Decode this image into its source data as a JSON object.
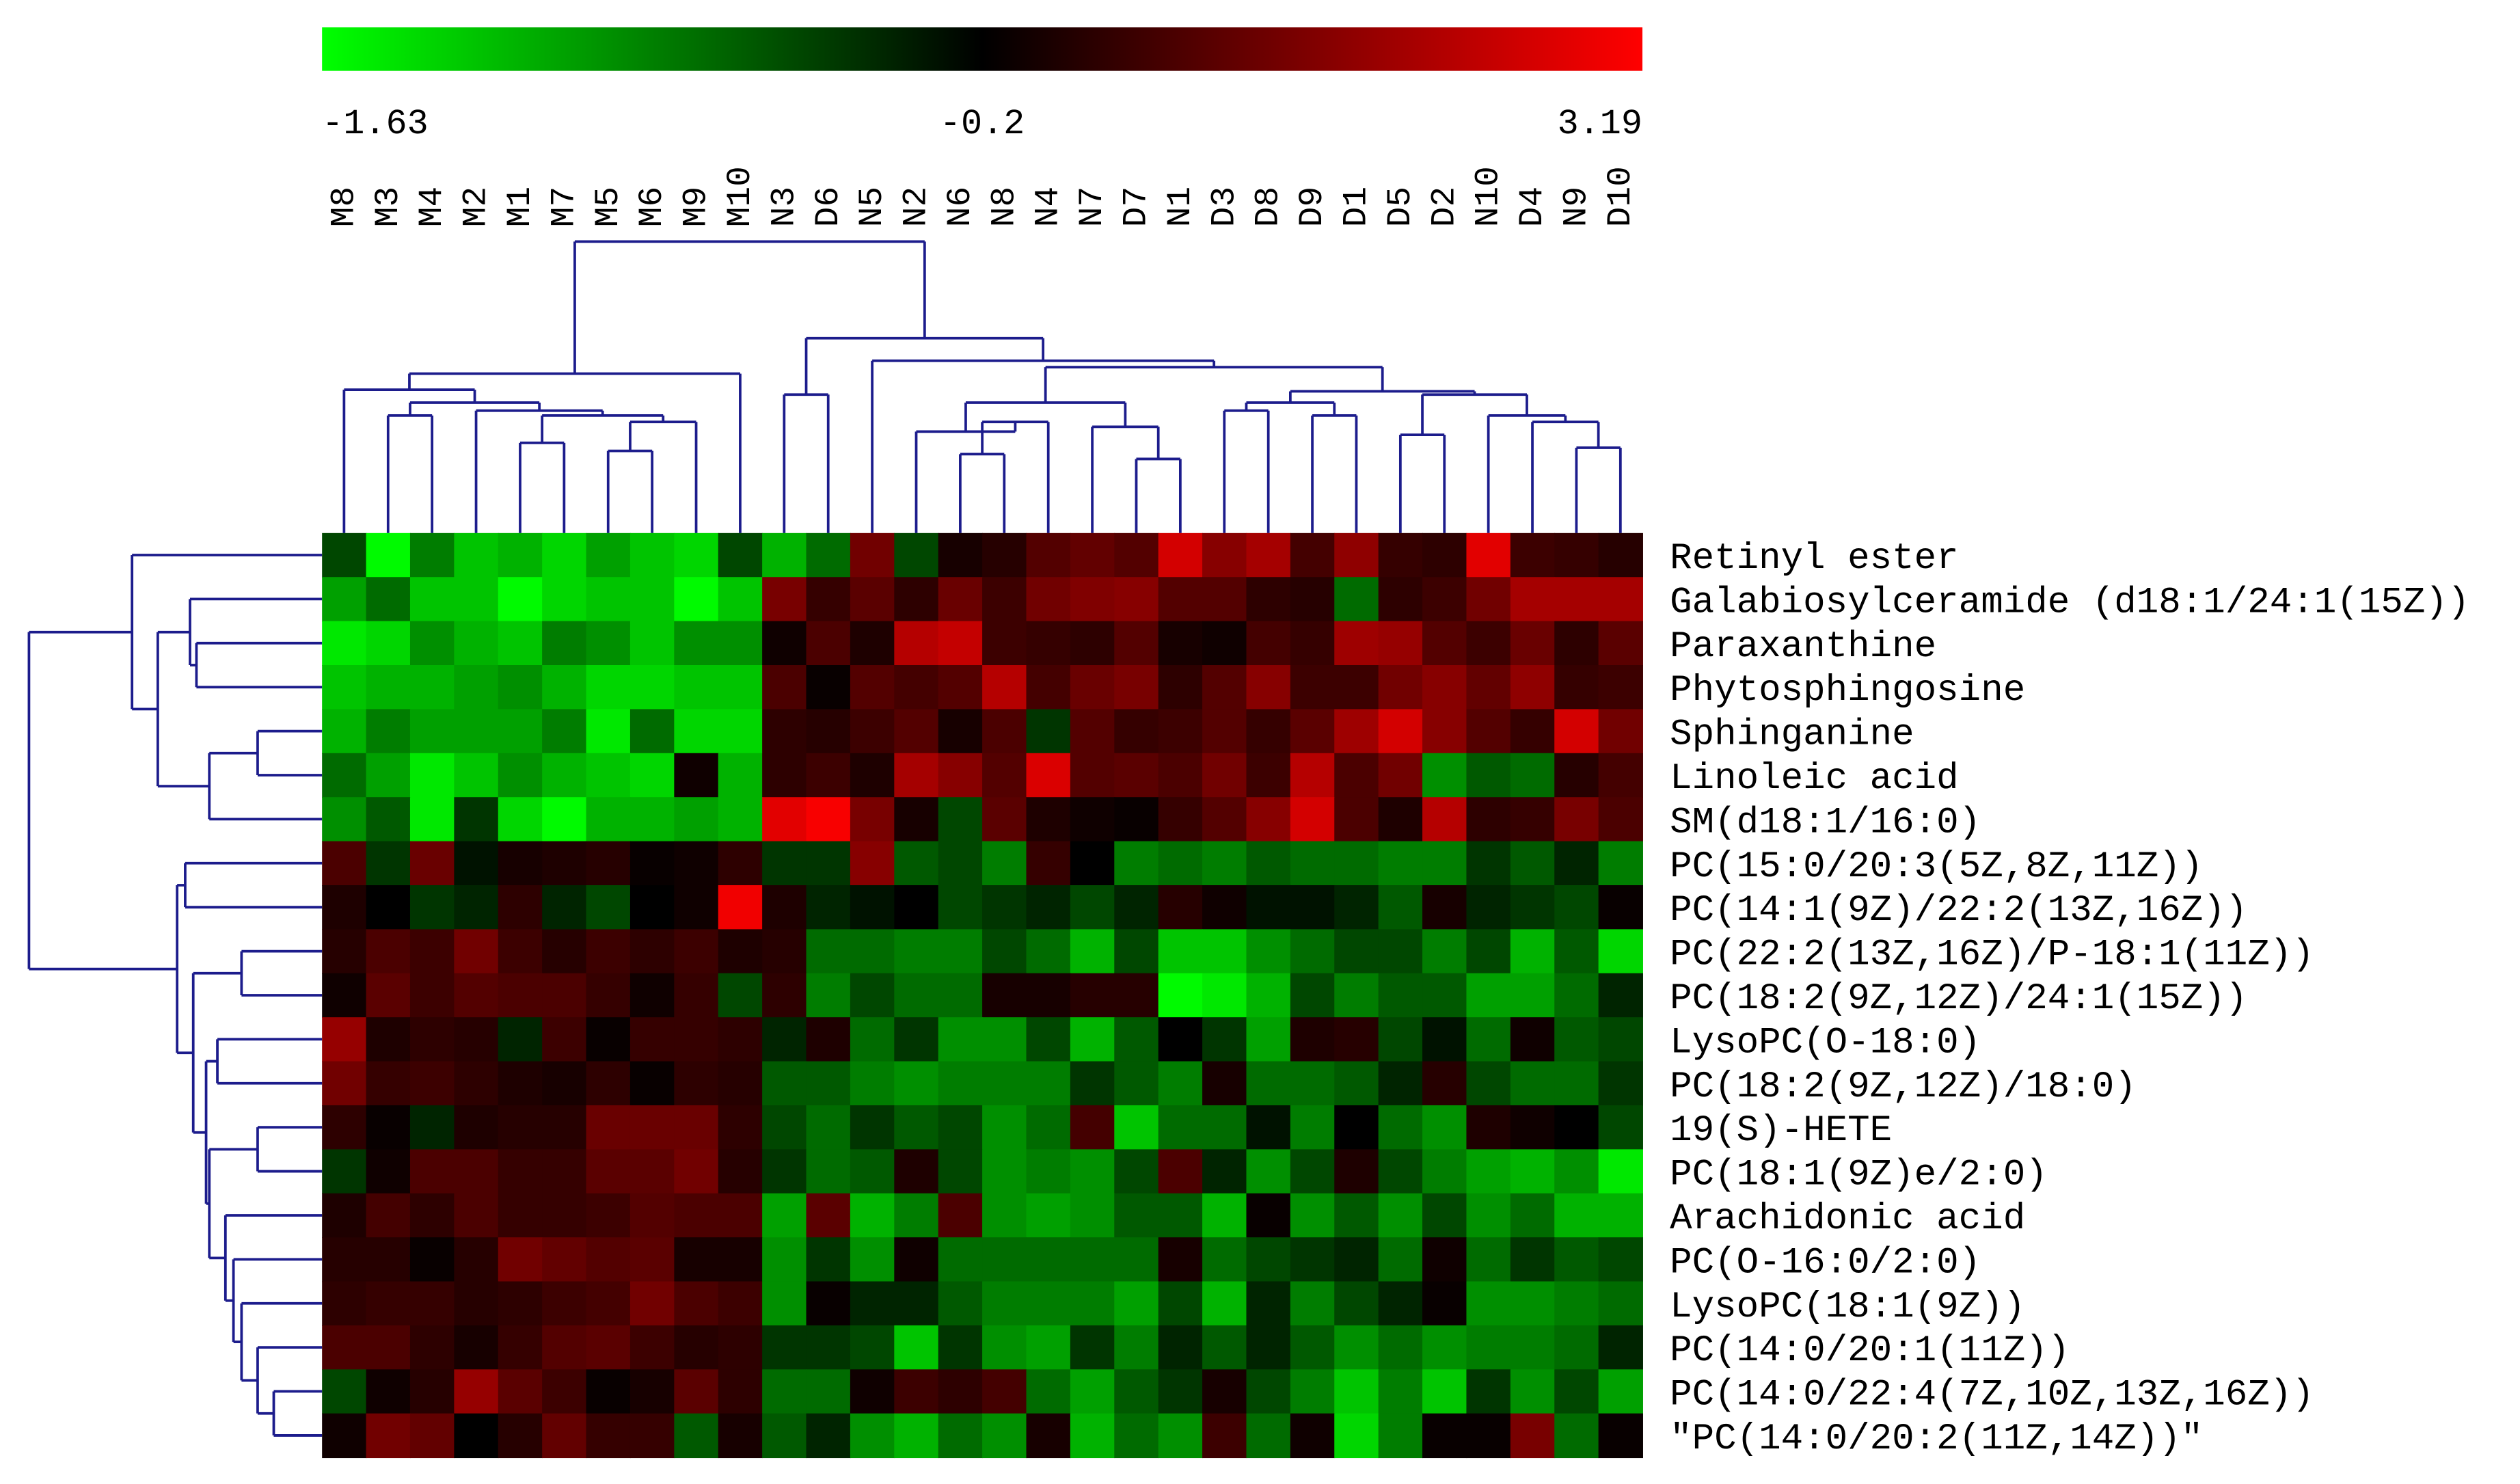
{
  "chart_data": {
    "type": "heatmap",
    "categories": [
      "M8",
      "M3",
      "M4",
      "M2",
      "M1",
      "M7",
      "M5",
      "M6",
      "M9",
      "M10",
      "N3",
      "D6",
      "N5",
      "N2",
      "N6",
      "N8",
      "N4",
      "N7",
      "D7",
      "N1",
      "D3",
      "D8",
      "D9",
      "D1",
      "D5",
      "D2",
      "N10",
      "D4",
      "N9",
      "D10"
    ],
    "rows": [
      "Retinyl ester",
      "Galabiosylceramide (d18:1/24:1(15Z))",
      "Paraxanthine",
      "Phytosphingosine",
      "Sphinganine",
      "Linoleic acid",
      "SM(d18:1/16:0)",
      "PC(15:0/20:3(5Z,8Z,11Z))",
      "PC(14:1(9Z)/22:2(13Z,16Z))",
      "PC(22:2(13Z,16Z)/P-18:1(11Z))",
      "PC(18:2(9Z,12Z)/24:1(15Z))",
      "LysoPC(O-18:0)",
      "PC(18:2(9Z,12Z)/18:0)",
      "19(S)-HETE",
      "PC(18:1(9Z)e/2:0)",
      "Arachidonic acid",
      "PC(O-16:0/2:0)",
      "LysoPC(18:1(9Z))",
      "PC(14:0/20:1(11Z))",
      "PC(14:0/22:4(7Z,10Z,13Z,16Z))",
      "″PC(14:0/20:2(11Z,14Z))″"
    ],
    "values": [
      [
        -0.6,
        -1.6,
        -0.9,
        -1.3,
        -1.2,
        -1.4,
        -1.1,
        -1.3,
        -1.4,
        -0.6,
        -1.2,
        -0.8,
        1.3,
        -0.6,
        0.1,
        0.3,
        0.9,
        1.1,
        0.9,
        2.6,
        1.6,
        2.0,
        0.7,
        1.7,
        0.5,
        0.4,
        2.8,
        0.6,
        0.5,
        0.3
      ],
      [
        -1.1,
        -0.8,
        -1.3,
        -1.3,
        -1.6,
        -1.4,
        -1.3,
        -1.3,
        -1.6,
        -1.3,
        1.4,
        0.5,
        1.0,
        0.4,
        1.2,
        0.6,
        1.3,
        1.5,
        1.6,
        0.9,
        0.9,
        0.4,
        0.3,
        -0.8,
        0.4,
        0.6,
        1.3,
        2.0,
        2.0,
        2.0
      ],
      [
        -1.5,
        -1.4,
        -1.0,
        -1.2,
        -1.3,
        -0.9,
        -1.0,
        -1.3,
        -1.0,
        -1.0,
        0.0,
        0.8,
        0.2,
        2.2,
        2.4,
        0.6,
        0.5,
        0.4,
        0.9,
        0.1,
        0.0,
        0.7,
        0.5,
        1.9,
        1.8,
        0.9,
        0.6,
        1.2,
        0.4,
        1.0
      ],
      [
        -1.3,
        -1.2,
        -1.2,
        -1.1,
        -1.0,
        -1.2,
        -1.4,
        -1.4,
        -1.3,
        -1.3,
        0.8,
        -0.1,
        0.9,
        0.7,
        0.9,
        2.2,
        0.7,
        1.2,
        1.4,
        0.4,
        0.9,
        1.6,
        0.6,
        0.6,
        1.3,
        1.6,
        1.1,
        1.7,
        0.5,
        0.6
      ],
      [
        -1.2,
        -0.9,
        -1.1,
        -1.1,
        -1.1,
        -0.9,
        -1.5,
        -0.8,
        -1.4,
        -1.4,
        0.4,
        0.3,
        0.6,
        0.9,
        0.1,
        0.8,
        -0.5,
        0.9,
        0.5,
        0.6,
        0.9,
        0.5,
        1.0,
        1.9,
        2.6,
        1.6,
        0.9,
        0.5,
        2.6,
        1.3
      ],
      [
        -0.8,
        -1.1,
        -1.5,
        -1.3,
        -1.0,
        -1.2,
        -1.3,
        -1.4,
        0.0,
        -1.2,
        0.4,
        0.6,
        0.2,
        2.0,
        1.6,
        0.9,
        2.7,
        0.9,
        1.0,
        0.8,
        1.3,
        0.6,
        2.2,
        0.8,
        1.3,
        -1.0,
        -0.7,
        -0.8,
        0.3,
        0.7
      ],
      [
        -1.0,
        -0.7,
        -1.5,
        -0.5,
        -1.4,
        -1.6,
        -1.2,
        -1.2,
        -1.1,
        -1.2,
        2.8,
        3.1,
        1.4,
        0.1,
        -0.6,
        1.0,
        0.2,
        0.0,
        -0.1,
        0.5,
        0.9,
        1.6,
        2.6,
        0.8,
        0.2,
        2.2,
        0.4,
        0.5,
        1.4,
        0.8
      ],
      [
        0.8,
        -0.5,
        1.2,
        -0.3,
        0.1,
        0.2,
        0.3,
        -0.1,
        0.0,
        0.4,
        -0.5,
        -0.5,
        1.6,
        -0.7,
        -0.6,
        -0.9,
        0.5,
        -0.2,
        -0.9,
        -0.8,
        -0.9,
        -0.7,
        -0.8,
        -0.8,
        -0.9,
        -0.9,
        -0.5,
        -0.7,
        -0.4,
        -0.9
      ],
      [
        0.2,
        -0.2,
        -0.5,
        -0.4,
        0.4,
        -0.4,
        -0.6,
        -0.2,
        0.0,
        3.0,
        0.2,
        -0.4,
        -0.3,
        -0.2,
        -0.6,
        -0.5,
        -0.4,
        -0.6,
        -0.4,
        0.3,
        0.0,
        -0.3,
        -0.3,
        -0.4,
        -0.7,
        0.1,
        -0.4,
        -0.5,
        -0.6,
        -0.1
      ],
      [
        0.3,
        0.8,
        0.6,
        1.3,
        0.6,
        0.3,
        0.6,
        0.4,
        0.6,
        0.2,
        0.3,
        -0.8,
        -0.8,
        -0.9,
        -0.9,
        -0.6,
        -0.8,
        -1.2,
        -0.6,
        -1.3,
        -1.3,
        -1.0,
        -0.8,
        -0.6,
        -0.6,
        -0.9,
        -0.6,
        -1.2,
        -0.7,
        -1.4
      ],
      [
        0.0,
        1.0,
        0.6,
        0.9,
        0.8,
        0.8,
        0.5,
        0.0,
        0.5,
        -0.6,
        0.4,
        -0.9,
        -0.6,
        -0.8,
        -0.8,
        0.1,
        0.1,
        0.3,
        0.3,
        -1.6,
        -1.5,
        -1.2,
        -0.6,
        -0.9,
        -0.7,
        -0.7,
        -1.1,
        -1.1,
        -0.8,
        -0.4
      ],
      [
        1.8,
        0.2,
        0.4,
        0.3,
        -0.4,
        0.6,
        -0.1,
        0.5,
        0.5,
        0.4,
        -0.4,
        0.2,
        -0.8,
        -0.5,
        -1.0,
        -1.0,
        -0.6,
        -1.2,
        -0.7,
        -0.2,
        -0.5,
        -1.1,
        0.2,
        0.3,
        -0.6,
        -0.3,
        -0.8,
        0.0,
        -0.7,
        -0.6
      ],
      [
        1.3,
        0.5,
        0.6,
        0.4,
        0.2,
        0.1,
        0.4,
        -0.1,
        0.4,
        0.3,
        -0.7,
        -0.7,
        -0.9,
        -1.0,
        -0.9,
        -0.9,
        -0.9,
        -0.5,
        -0.7,
        -0.9,
        0.1,
        -0.8,
        -0.8,
        -0.7,
        -0.4,
        0.3,
        -0.6,
        -0.8,
        -0.8,
        -0.5
      ],
      [
        0.4,
        -0.1,
        -0.4,
        0.2,
        0.3,
        0.3,
        1.2,
        1.2,
        1.2,
        0.4,
        -0.6,
        -0.8,
        -0.5,
        -0.7,
        -0.6,
        -1.0,
        -0.8,
        0.7,
        -1.3,
        -0.8,
        -0.8,
        -0.3,
        -0.9,
        -0.2,
        -0.8,
        -1.0,
        0.2,
        0.0,
        -0.2,
        -0.6
      ],
      [
        -0.5,
        0.0,
        0.8,
        0.8,
        0.5,
        0.5,
        1.0,
        1.0,
        1.3,
        0.3,
        -0.5,
        -0.8,
        -0.7,
        0.2,
        -0.6,
        -1.0,
        -0.9,
        -1.0,
        -0.6,
        0.8,
        -0.4,
        -1.0,
        -0.6,
        0.2,
        -0.6,
        -0.9,
        -1.1,
        -1.2,
        -1.0,
        -1.5
      ],
      [
        0.2,
        0.7,
        0.4,
        0.8,
        0.5,
        0.5,
        0.6,
        0.9,
        0.8,
        0.8,
        -1.1,
        1.0,
        -1.2,
        -0.9,
        0.8,
        -1.0,
        -1.1,
        -1.0,
        -0.7,
        -0.7,
        -1.2,
        -0.1,
        -1.0,
        -0.7,
        -1.0,
        -0.6,
        -1.0,
        -0.8,
        -1.2,
        -1.2
      ],
      [
        0.3,
        0.3,
        -0.1,
        0.3,
        1.3,
        1.1,
        0.9,
        1.0,
        0.1,
        0.1,
        -1.0,
        -0.5,
        -1.0,
        0.0,
        -0.8,
        -0.8,
        -0.8,
        -0.8,
        -0.8,
        0.1,
        -0.8,
        -0.6,
        -0.5,
        -0.4,
        -0.8,
        0.0,
        -0.8,
        -0.5,
        -0.7,
        -0.6
      ],
      [
        0.4,
        0.5,
        0.5,
        0.3,
        0.4,
        0.6,
        0.7,
        1.3,
        0.8,
        0.6,
        -1.0,
        -0.1,
        -0.4,
        -0.4,
        -0.7,
        -0.9,
        -0.9,
        -0.9,
        -1.1,
        -0.6,
        -1.2,
        -0.4,
        -0.9,
        -0.6,
        -0.4,
        -0.1,
        -1.0,
        -1.0,
        -0.9,
        -0.8
      ],
      [
        0.8,
        0.8,
        0.4,
        0.1,
        0.5,
        0.9,
        1.0,
        0.6,
        0.3,
        0.4,
        -0.5,
        -0.5,
        -0.6,
        -1.3,
        -0.5,
        -1.0,
        -1.1,
        -0.5,
        -0.9,
        -0.4,
        -0.7,
        -0.4,
        -0.7,
        -1.0,
        -0.8,
        -1.0,
        -0.9,
        -0.9,
        -0.8,
        -0.4
      ],
      [
        -0.6,
        0.0,
        0.3,
        1.8,
        1.0,
        0.6,
        -0.1,
        0.1,
        1.0,
        0.4,
        -0.8,
        -0.8,
        0.0,
        0.6,
        0.4,
        0.7,
        -0.8,
        -1.1,
        -0.7,
        -0.5,
        0.1,
        -0.6,
        -0.9,
        -1.3,
        -0.9,
        -1.3,
        -0.5,
        -1.0,
        -0.6,
        -1.1
      ],
      [
        0.0,
        1.3,
        1.1,
        -0.2,
        0.3,
        1.1,
        0.5,
        0.5,
        -0.7,
        0.1,
        -0.7,
        -0.4,
        -1.0,
        -1.2,
        -0.8,
        -1.0,
        0.1,
        -1.2,
        -0.8,
        -1.0,
        0.6,
        -0.8,
        0.0,
        -1.4,
        -0.9,
        -0.1,
        -0.1,
        1.4,
        -0.8,
        -0.1
      ]
    ],
    "colorbar_ticks": [
      -1.63,
      -0.2,
      3.19
    ],
    "colors": [
      "#00ff00",
      "#000000",
      "#ff0000"
    ]
  }
}
